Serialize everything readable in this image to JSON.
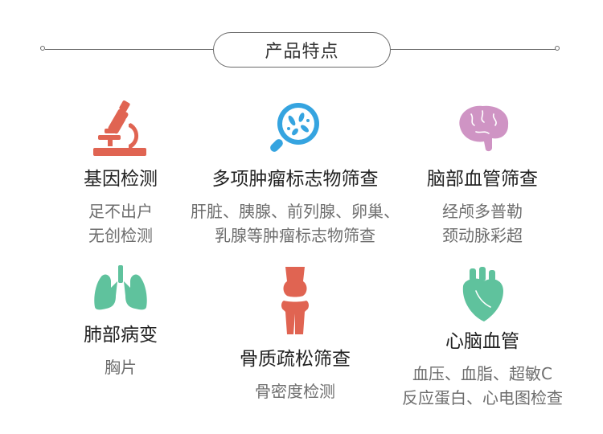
{
  "header": {
    "title": "产品特点"
  },
  "features": [
    {
      "title": "基因检测",
      "desc": [
        "足不出户",
        "无创检测"
      ],
      "icon": "microscope-icon",
      "color": "#e06452"
    },
    {
      "title": "多项肿瘤标志物筛查",
      "desc": [
        "肝脏、胰腺、前列腺、卵巢、",
        "乳腺等肿瘤标志物筛查"
      ],
      "icon": "bacteria-magnifier-icon",
      "color": "#35a4e0"
    },
    {
      "title": "脑部血管筛查",
      "desc": [
        "经颅多普勒",
        "颈动脉彩超"
      ],
      "icon": "brain-icon",
      "color": "#cf94c4"
    },
    {
      "title": "肺部病变",
      "desc": [
        "胸片"
      ],
      "icon": "lungs-icon",
      "color": "#5fc29d"
    },
    {
      "title": "骨质疏松筛查",
      "desc": [
        "骨密度检测"
      ],
      "icon": "knee-joint-icon",
      "color": "#e06452"
    },
    {
      "title": "心脑血管",
      "desc": [
        "血压、血脂、超敏C",
        "反应蛋白、心电图检查"
      ],
      "icon": "heart-icon",
      "color": "#5fc29d"
    }
  ]
}
